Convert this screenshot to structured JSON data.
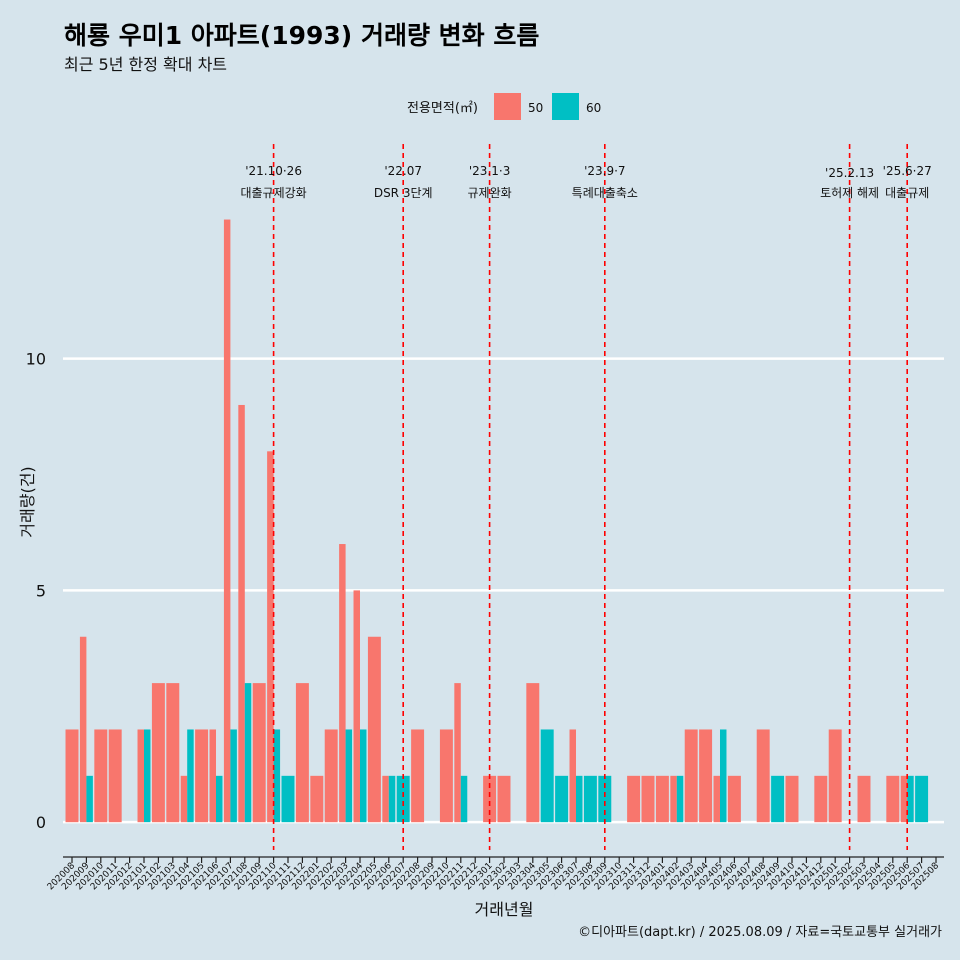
{
  "chart_data": {
    "type": "bar",
    "title": "해룡 우미1 아파트(1993) 거래량 변화 흐름",
    "subtitle": "최근 5년 한정 확대 차트",
    "xlabel": "거래년월",
    "ylabel": "거래량(건)",
    "ylim": [
      -0.6,
      14.5
    ],
    "yticks": [
      0,
      5,
      10
    ],
    "grid": "horizontal",
    "legend": {
      "title": "전용면적(㎡)",
      "placement": "top",
      "items": [
        {
          "name": "50",
          "color": "#f8766d"
        },
        {
          "name": "60",
          "color": "#00bfc4"
        }
      ]
    },
    "categories": [
      "202008",
      "202009",
      "202010",
      "202011",
      "202012",
      "202101",
      "202102",
      "202103",
      "202104",
      "202105",
      "202106",
      "202107",
      "202108",
      "202109",
      "202110",
      "202111",
      "202112",
      "202201",
      "202202",
      "202203",
      "202204",
      "202205",
      "202206",
      "202207",
      "202208",
      "202209",
      "202210",
      "202211",
      "202212",
      "202301",
      "202302",
      "202303",
      "202304",
      "202305",
      "202306",
      "202307",
      "202308",
      "202309",
      "202310",
      "202311",
      "202312",
      "202401",
      "202402",
      "202403",
      "202404",
      "202405",
      "202406",
      "202407",
      "202408",
      "202409",
      "202410",
      "202411",
      "202412",
      "202501",
      "202502",
      "202503",
      "202504",
      "202505",
      "202506",
      "202507",
      "202508"
    ],
    "series": [
      {
        "name": "50",
        "color": "#f8766d",
        "values": [
          2,
          4,
          2,
          2,
          0,
          2,
          3,
          3,
          1,
          2,
          2,
          13,
          9,
          3,
          8,
          0,
          3,
          1,
          2,
          6,
          5,
          4,
          1,
          0,
          2,
          0,
          2,
          3,
          0,
          1,
          1,
          0,
          3,
          0,
          0,
          2,
          0,
          0,
          0,
          1,
          1,
          1,
          1,
          2,
          2,
          1,
          1,
          0,
          2,
          0,
          1,
          0,
          1,
          2,
          0,
          1,
          0,
          1,
          1,
          0,
          0
        ]
      },
      {
        "name": "60",
        "color": "#00bfc4",
        "values": [
          0,
          1,
          0,
          0,
          0,
          2,
          0,
          0,
          2,
          0,
          1,
          2,
          3,
          0,
          2,
          1,
          0,
          0,
          0,
          2,
          2,
          0,
          1,
          1,
          0,
          0,
          0,
          1,
          0,
          0,
          0,
          0,
          0,
          2,
          1,
          1,
          1,
          1,
          0,
          0,
          0,
          0,
          1,
          0,
          0,
          2,
          0,
          0,
          0,
          1,
          0,
          0,
          0,
          0,
          0,
          0,
          0,
          0,
          1,
          1,
          0
        ]
      }
    ],
    "events": [
      {
        "month": "202110",
        "date": "'21.10·26",
        "label": "대출규제강화"
      },
      {
        "month": "202207",
        "date": "'22.07",
        "label": "DSR 3단계"
      },
      {
        "month": "202301",
        "date": "'23.1·3",
        "label": "규제완화"
      },
      {
        "month": "202309",
        "date": "'23.9·7",
        "label": "특례대출축소"
      },
      {
        "month": "202502",
        "date": "'25.2.13",
        "label": "토허제 해제"
      },
      {
        "month": "202506",
        "date": "'25.6·27",
        "label": "대출규제"
      }
    ],
    "event_line_color": "#ff0000"
  },
  "caption": "©디아파트(dapt.kr) / 2025.08.09 / 자료=국토교통부 실거래가"
}
